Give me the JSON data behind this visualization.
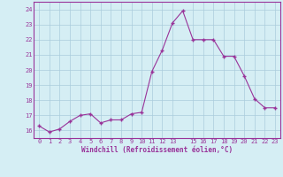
{
  "x": [
    0,
    1,
    2,
    3,
    4,
    5,
    6,
    7,
    8,
    9,
    10,
    11,
    12,
    13,
    14,
    15,
    16,
    17,
    18,
    19,
    20,
    21,
    22,
    23
  ],
  "y": [
    16.3,
    15.9,
    16.1,
    16.6,
    17.0,
    17.1,
    16.5,
    16.7,
    16.7,
    17.1,
    17.2,
    19.9,
    21.3,
    23.1,
    23.9,
    22.0,
    22.0,
    22.0,
    20.9,
    20.9,
    19.6,
    18.1,
    17.5,
    17.5
  ],
  "xlim": [
    -0.5,
    23.5
  ],
  "ylim": [
    15.5,
    24.5
  ],
  "yticks": [
    16,
    17,
    18,
    19,
    20,
    21,
    22,
    23,
    24
  ],
  "xticks": [
    0,
    1,
    2,
    3,
    4,
    5,
    6,
    7,
    8,
    9,
    10,
    11,
    12,
    13,
    15,
    16,
    17,
    18,
    19,
    20,
    21,
    22,
    23
  ],
  "line_color": "#993399",
  "marker_color": "#993399",
  "bg_color": "#d5eef4",
  "grid_color": "#aaccdd",
  "xlabel": "Windchill (Refroidissement éolien,°C)",
  "xlabel_color": "#993399",
  "tick_color": "#993399",
  "figsize": [
    3.2,
    2.0
  ],
  "dpi": 100
}
